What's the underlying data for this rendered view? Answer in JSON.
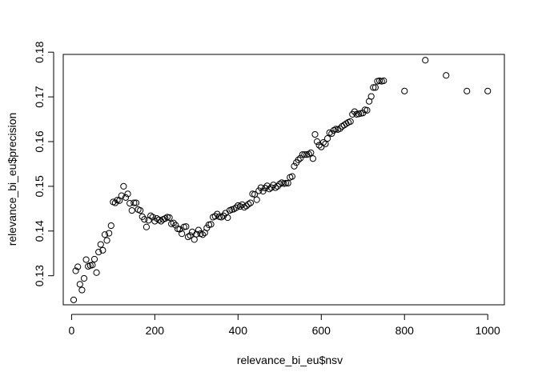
{
  "chart_data": {
    "type": "scatter",
    "title": "",
    "xlabel": "relevance_bi_eu$nsv",
    "ylabel": "relevance_bi_eu$precision",
    "xlim": [
      -20,
      1040
    ],
    "ylim": [
      0.1235,
      0.1795
    ],
    "x_ticks": [
      0,
      200,
      400,
      600,
      800,
      1000
    ],
    "y_ticks": [
      0.13,
      0.14,
      0.15,
      0.16,
      0.17,
      0.18
    ],
    "x_tick_labels": [
      "0",
      "200",
      "400",
      "600",
      "800",
      "1000"
    ],
    "y_tick_labels": [
      "0.13",
      "0.14",
      "0.15",
      "0.16",
      "0.17",
      "0.18"
    ],
    "grid": false,
    "marker": "open-circle",
    "x": [
      5,
      10,
      15,
      20,
      25,
      30,
      35,
      40,
      45,
      50,
      55,
      60,
      65,
      70,
      75,
      80,
      85,
      90,
      95,
      100,
      105,
      110,
      115,
      120,
      125,
      130,
      135,
      140,
      145,
      150,
      155,
      160,
      165,
      170,
      175,
      180,
      185,
      190,
      195,
      200,
      205,
      210,
      215,
      220,
      225,
      230,
      235,
      240,
      245,
      250,
      255,
      260,
      265,
      270,
      275,
      280,
      285,
      290,
      295,
      300,
      305,
      310,
      315,
      320,
      325,
      330,
      335,
      340,
      345,
      350,
      355,
      360,
      365,
      370,
      375,
      380,
      385,
      390,
      395,
      400,
      405,
      410,
      415,
      420,
      425,
      430,
      435,
      440,
      445,
      450,
      455,
      460,
      465,
      470,
      475,
      480,
      485,
      490,
      495,
      500,
      505,
      510,
      515,
      520,
      525,
      530,
      535,
      540,
      545,
      550,
      555,
      560,
      565,
      570,
      575,
      580,
      585,
      590,
      595,
      600,
      605,
      610,
      615,
      620,
      625,
      630,
      635,
      640,
      645,
      650,
      655,
      660,
      665,
      670,
      675,
      680,
      685,
      690,
      695,
      700,
      705,
      710,
      715,
      720,
      725,
      730,
      735,
      740,
      745,
      750,
      800,
      850,
      900,
      950,
      1000
    ],
    "y": [
      0.1246,
      0.1311,
      0.132,
      0.1281,
      0.1268,
      0.1294,
      0.1336,
      0.1321,
      0.1323,
      0.1324,
      0.1337,
      0.1307,
      0.1353,
      0.137,
      0.1357,
      0.1392,
      0.1379,
      0.1395,
      0.1412,
      0.1465,
      0.1463,
      0.1469,
      0.1468,
      0.1479,
      0.15,
      0.1475,
      0.1483,
      0.1462,
      0.1446,
      0.1463,
      0.1463,
      0.1448,
      0.1446,
      0.1432,
      0.1426,
      0.1409,
      0.1424,
      0.1434,
      0.1431,
      0.1422,
      0.1428,
      0.1425,
      0.1422,
      0.1426,
      0.1428,
      0.1431,
      0.143,
      0.1416,
      0.1418,
      0.1413,
      0.1405,
      0.1404,
      0.1394,
      0.1409,
      0.141,
      0.1387,
      0.139,
      0.1398,
      0.1381,
      0.1393,
      0.1402,
      0.1394,
      0.1392,
      0.1396,
      0.1407,
      0.1414,
      0.1415,
      0.1431,
      0.1433,
      0.1438,
      0.1432,
      0.1431,
      0.1434,
      0.144,
      0.143,
      0.1446,
      0.1448,
      0.1449,
      0.1452,
      0.1457,
      0.1455,
      0.1459,
      0.1453,
      0.1456,
      0.146,
      0.1463,
      0.1483,
      0.1482,
      0.147,
      0.149,
      0.1497,
      0.1489,
      0.1496,
      0.1501,
      0.1494,
      0.1497,
      0.1503,
      0.1497,
      0.15,
      0.1505,
      0.1508,
      0.1506,
      0.1507,
      0.1507,
      0.152,
      0.1522,
      0.1545,
      0.1553,
      0.1559,
      0.1563,
      0.1571,
      0.1571,
      0.1571,
      0.1572,
      0.1575,
      0.1562,
      0.1616,
      0.16,
      0.1592,
      0.1588,
      0.1598,
      0.1595,
      0.1607,
      0.162,
      0.1618,
      0.1625,
      0.1628,
      0.1627,
      0.1629,
      0.1634,
      0.1637,
      0.164,
      0.1643,
      0.1645,
      0.1661,
      0.1667,
      0.1661,
      0.1662,
      0.1663,
      0.1664,
      0.1671,
      0.167,
      0.169,
      0.1701,
      0.1721,
      0.1721,
      0.1735,
      0.1736,
      0.1735,
      0.1736,
      0.1713,
      0.1782,
      0.1748,
      0.1713,
      0.1713
    ]
  }
}
